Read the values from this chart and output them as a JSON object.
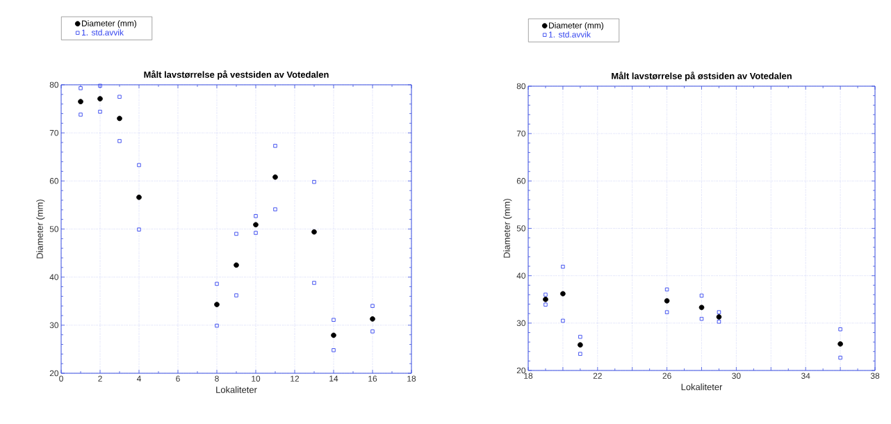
{
  "chart_data": [
    {
      "type": "scatter",
      "title": "Målt lavstørrelse på vestsiden av Votedalen",
      "xlabel": "Lokaliteter",
      "ylabel": "Diameter (mm)",
      "xlim": [
        0,
        18
      ],
      "ylim": [
        20,
        80
      ],
      "xticks": [
        0,
        2,
        4,
        6,
        8,
        10,
        12,
        14,
        16,
        18
      ],
      "yticks": [
        20,
        30,
        40,
        50,
        60,
        70,
        80
      ],
      "grid": true,
      "legend": "top left",
      "series": [
        {
          "name": "Diameter (mm)",
          "color": "#000000",
          "marker": "circle",
          "x": [
            1,
            2,
            3,
            4,
            8,
            9,
            10,
            11,
            13,
            14,
            16
          ],
          "values": [
            76.5,
            77.1,
            73.0,
            56.6,
            34.3,
            42.5,
            50.9,
            60.8,
            49.4,
            27.9,
            31.3
          ]
        },
        {
          "name": "1. std.avvik",
          "color": "#3344ee",
          "marker": "square",
          "x": [
            1,
            1,
            2,
            2,
            3,
            3,
            4,
            4,
            8,
            8,
            9,
            9,
            10,
            10,
            11,
            11,
            13,
            13,
            14,
            14,
            16,
            16
          ],
          "values": [
            79.3,
            73.8,
            79.8,
            74.4,
            77.5,
            68.3,
            63.3,
            49.9,
            38.6,
            29.9,
            49.0,
            36.2,
            52.7,
            49.2,
            67.3,
            54.1,
            59.8,
            38.8,
            31.1,
            24.8,
            34.0,
            28.7
          ]
        }
      ]
    },
    {
      "type": "scatter",
      "title": "Målt lavstørrelse på østsiden av Votedalen",
      "xlabel": "Lokaliteter",
      "ylabel": "Diameter (mm)",
      "xlim": [
        18,
        38
      ],
      "ylim": [
        20,
        80
      ],
      "xticks": [
        18,
        {
          "value": 20,
          "label": null
        },
        22,
        {
          "value": 24,
          "label": null
        },
        26,
        {
          "value": 28,
          "label": null
        },
        30,
        {
          "value": 32,
          "label": null
        },
        34,
        {
          "value": 36,
          "label": null
        },
        38
      ],
      "yticks": [
        20,
        30,
        40,
        50,
        60,
        70,
        80
      ],
      "grid": true,
      "legend": "top left",
      "series": [
        {
          "name": "Diameter (mm)",
          "color": "#000000",
          "marker": "circle",
          "x": [
            19,
            20,
            21,
            26,
            28,
            29,
            36
          ],
          "values": [
            35.0,
            36.2,
            25.4,
            34.7,
            33.3,
            31.3,
            25.6
          ]
        },
        {
          "name": "1. std.avvik",
          "color": "#3344ee",
          "marker": "square",
          "x": [
            19,
            19,
            20,
            20,
            21,
            21,
            26,
            26,
            28,
            28,
            29,
            29,
            36,
            36
          ],
          "values": [
            36.0,
            33.9,
            41.9,
            30.5,
            27.1,
            23.5,
            37.1,
            32.3,
            35.8,
            30.9,
            32.3,
            30.3,
            28.7,
            22.7
          ]
        }
      ]
    }
  ]
}
